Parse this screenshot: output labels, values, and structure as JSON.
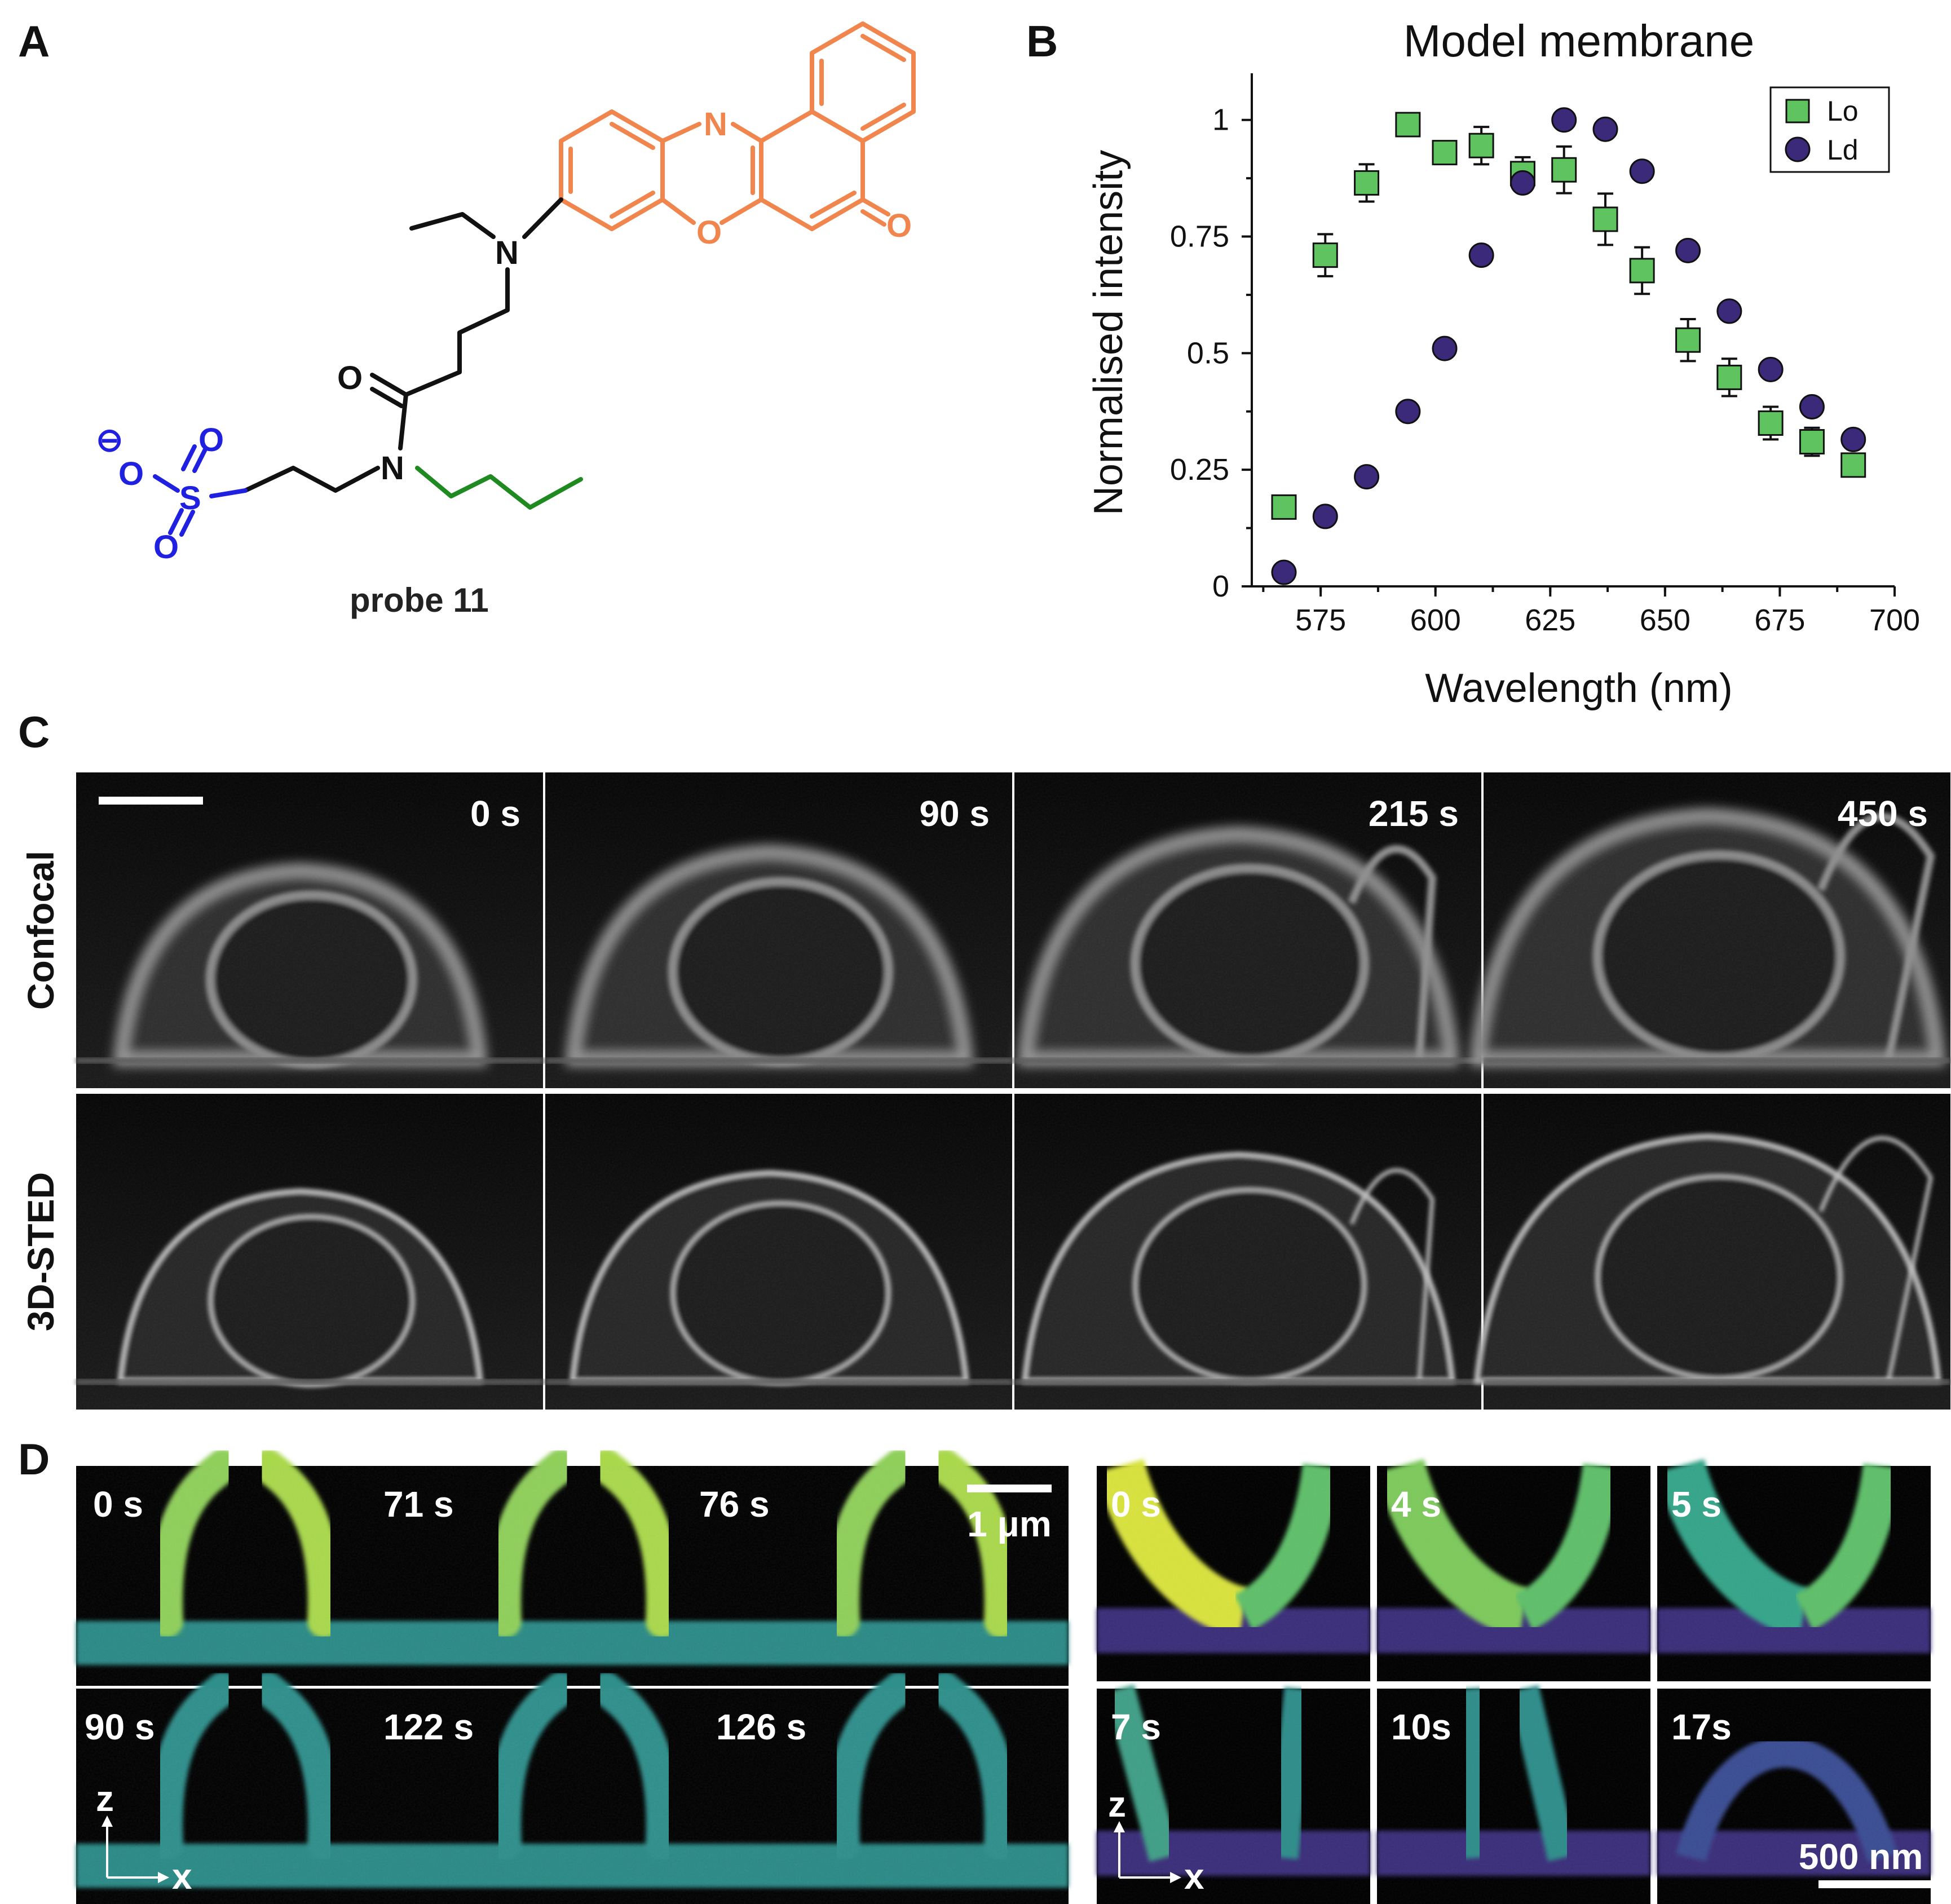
{
  "panels": {
    "a": "A",
    "b": "B",
    "c": "C",
    "d": "D"
  },
  "chemistry": {
    "probe_label": "probe 11",
    "atoms": {
      "n_ring": "N",
      "o_ring": "O",
      "o_keto": "O",
      "n_amine": "N",
      "o_amide": "O",
      "n_amide": "N",
      "s": "S",
      "o_s1": "O",
      "o_s2": "O",
      "o_minus": "O",
      "charge": "⊖"
    },
    "colors": {
      "core": "#f0864e",
      "sulfonate": "#2020e0",
      "tail": "#1f8a1f",
      "linker": "#111111"
    }
  },
  "chart_data": {
    "type": "scatter",
    "title": "Model membrane",
    "xlabel": "Wavelength (nm)",
    "ylabel": "Normalised intensity",
    "xlim": [
      560,
      700
    ],
    "ylim": [
      0,
      1.1
    ],
    "xticks": [
      "575",
      "600",
      "625",
      "650",
      "675",
      "700"
    ],
    "yticks": [
      "0",
      "0.25",
      "0.5",
      "0.75",
      "1"
    ],
    "legend_position": "top-right",
    "series": [
      {
        "name": "Lo",
        "marker": "square",
        "color": "#5fc45f",
        "x": [
          567,
          576,
          585,
          594,
          602,
          610,
          619,
          628,
          637,
          645,
          655,
          664,
          673,
          682,
          691
        ],
        "y": [
          0.17,
          0.71,
          0.865,
          0.99,
          0.93,
          0.945,
          0.885,
          0.893,
          0.787,
          0.677,
          0.528,
          0.448,
          0.35,
          0.31,
          0.26
        ],
        "err": [
          0,
          0.045,
          0.04,
          0,
          0,
          0.04,
          0.035,
          0.05,
          0.055,
          0.05,
          0.045,
          0.04,
          0.035,
          0.03,
          0
        ]
      },
      {
        "name": "Ld",
        "marker": "circle",
        "color": "#3b2a7a",
        "x": [
          567,
          576,
          585,
          594,
          602,
          610,
          619,
          628,
          637,
          645,
          655,
          664,
          673,
          682,
          691
        ],
        "y": [
          0.03,
          0.15,
          0.235,
          0.375,
          0.51,
          0.71,
          0.865,
          1.0,
          0.98,
          0.89,
          0.72,
          0.59,
          0.465,
          0.385,
          0.315
        ]
      }
    ]
  },
  "panel_c": {
    "rows": [
      "Confocal",
      "3D-STED"
    ],
    "times": [
      "0 s",
      "90 s",
      "215 s",
      "450 s"
    ]
  },
  "panel_d": {
    "left_times_top": [
      "0 s",
      "71 s",
      "76 s"
    ],
    "left_times_bottom": [
      "90 s",
      "122 s",
      "126 s"
    ],
    "left_scalebar": "1 μm",
    "right_times_top": [
      "0 s",
      "4 s",
      "5 s"
    ],
    "right_times_bottom": [
      "7 s",
      "10s",
      "17s"
    ],
    "right_scalebar": "500 nm",
    "axis_z": "z",
    "axis_x": "x"
  }
}
